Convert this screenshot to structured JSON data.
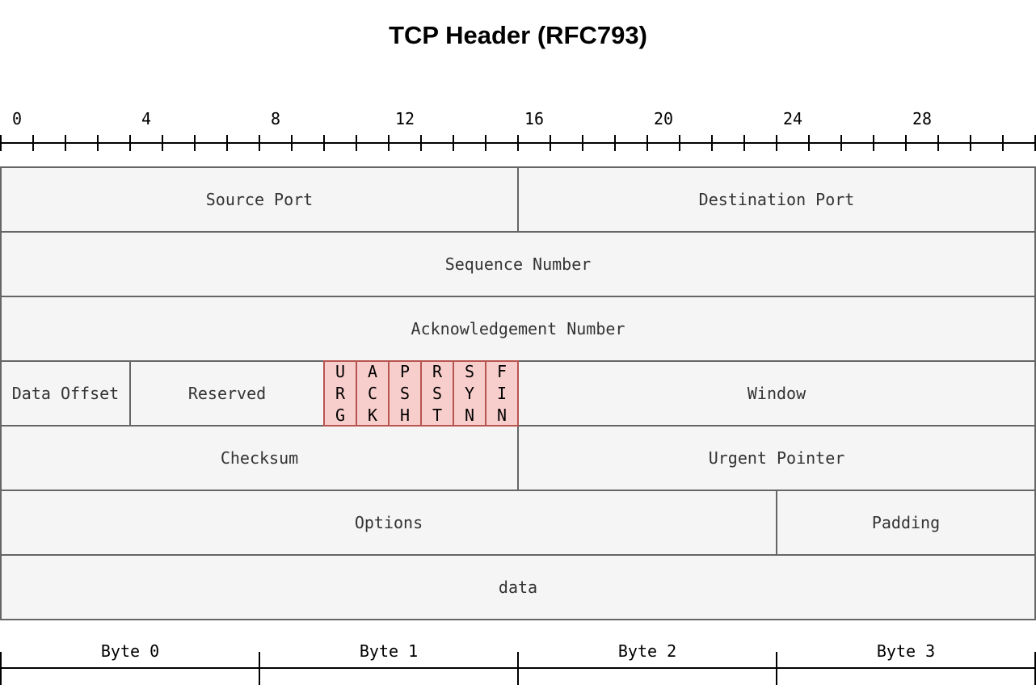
{
  "title": "TCP Header (RFC793)",
  "bit_ruler": {
    "total_bits": 32,
    "label_every": 4,
    "labels": [
      "0",
      "4",
      "8",
      "12",
      "16",
      "20",
      "24",
      "28"
    ]
  },
  "byte_ruler": {
    "labels": [
      "Byte 0",
      "Byte 1",
      "Byte 2",
      "Byte 3"
    ]
  },
  "colors": {
    "field_fill": "#f5f5f5",
    "field_stroke": "#666666",
    "field_text": "#333333",
    "flag_fill": "#f8cecc",
    "flag_stroke": "#b85450",
    "ruler": "#000000"
  },
  "rows": [
    [
      {
        "label": "Source Port",
        "bits": 16
      },
      {
        "label": "Destination Port",
        "bits": 16
      }
    ],
    [
      {
        "label": "Sequence Number",
        "bits": 32
      }
    ],
    [
      {
        "label": "Acknowledgement Number",
        "bits": 32
      }
    ],
    [
      {
        "label": "Data Offset",
        "bits": 4
      },
      {
        "label": "Reserved",
        "bits": 6
      },
      {
        "label": "URG",
        "bits": 1,
        "flag": true
      },
      {
        "label": "ACK",
        "bits": 1,
        "flag": true
      },
      {
        "label": "PSH",
        "bits": 1,
        "flag": true
      },
      {
        "label": "RST",
        "bits": 1,
        "flag": true
      },
      {
        "label": "SYN",
        "bits": 1,
        "flag": true
      },
      {
        "label": "FIN",
        "bits": 1,
        "flag": true
      },
      {
        "label": "Window",
        "bits": 16
      }
    ],
    [
      {
        "label": "Checksum",
        "bits": 16
      },
      {
        "label": "Urgent Pointer",
        "bits": 16
      }
    ],
    [
      {
        "label": "Options",
        "bits": 24
      },
      {
        "label": "Padding",
        "bits": 8
      }
    ],
    [
      {
        "label": "data",
        "bits": 32
      }
    ]
  ]
}
